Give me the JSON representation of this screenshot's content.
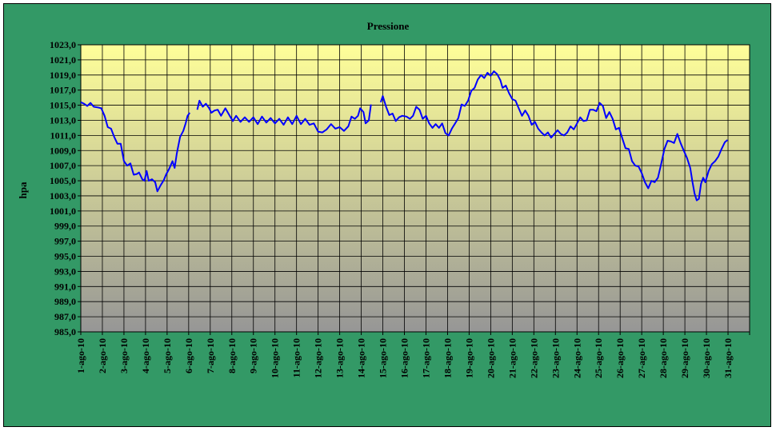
{
  "chart_data": {
    "type": "line",
    "title": "Pressione",
    "xlabel": "",
    "ylabel": "hpa",
    "ylim": [
      985.0,
      1023.0
    ],
    "ytick_step": 2.0,
    "grid": true,
    "legend": "none",
    "categories": [
      "1-ago-10",
      "2-ago-10",
      "3-ago-10",
      "4-ago-10",
      "5-ago-10",
      "6-ago-10",
      "7-ago-10",
      "8-ago-10",
      "9-ago-10",
      "10-ago-10",
      "11-ago-10",
      "12-ago-10",
      "13-ago-10",
      "14-ago-10",
      "15-ago-10",
      "16-ago-10",
      "17-ago-10",
      "18-ago-10",
      "19-ago-10",
      "20-ago-10",
      "21-ago-10",
      "22-ago-10",
      "23-ago-10",
      "24-ago-10",
      "25-ago-10",
      "26-ago-10",
      "27-ago-10",
      "28-ago-10",
      "29-ago-10",
      "30-ago-10",
      "31-ago-10"
    ],
    "colors": {
      "line": "#0000ff",
      "frame": "#339966",
      "plot_top": "#ffff99",
      "plot_bottom": "#969696",
      "grid": "#000000"
    },
    "series": [
      {
        "points": [
          [
            1.0,
            1015.4
          ],
          [
            1.15,
            1015.2
          ],
          [
            1.3,
            1014.9
          ],
          [
            1.45,
            1015.3
          ],
          [
            1.6,
            1014.8
          ],
          [
            1.8,
            1014.7
          ],
          [
            1.95,
            1014.6
          ],
          [
            2.1,
            1013.6
          ],
          [
            2.25,
            1012.1
          ],
          [
            2.4,
            1011.9
          ],
          [
            2.55,
            1010.8
          ],
          [
            2.7,
            1009.9
          ],
          [
            2.85,
            1009.9
          ],
          [
            3.0,
            1007.6
          ],
          [
            3.15,
            1007.0
          ],
          [
            3.3,
            1007.3
          ],
          [
            3.45,
            1005.8
          ],
          [
            3.6,
            1005.9
          ],
          [
            3.7,
            1006.1
          ],
          [
            3.85,
            1005.2
          ],
          [
            3.95,
            1005.0
          ],
          [
            4.05,
            1006.3
          ],
          [
            4.15,
            1005.0
          ],
          [
            4.3,
            1005.2
          ],
          [
            4.45,
            1004.8
          ],
          [
            4.55,
            1003.6
          ],
          [
            4.7,
            1004.4
          ],
          [
            4.85,
            1005.1
          ],
          [
            4.95,
            1005.8
          ],
          [
            5.1,
            1006.6
          ],
          [
            5.25,
            1007.6
          ],
          [
            5.35,
            1006.7
          ],
          [
            5.45,
            1008.6
          ],
          [
            5.6,
            1010.8
          ],
          [
            5.75,
            1011.6
          ],
          [
            5.85,
            1012.5
          ],
          [
            5.95,
            1013.6
          ],
          [
            6.05,
            1014.0
          ],
          [
            6.4,
            1014.4
          ],
          [
            6.5,
            1015.6
          ],
          [
            6.65,
            1014.8
          ],
          [
            6.8,
            1015.2
          ],
          [
            6.95,
            1014.6
          ],
          [
            7.05,
            1014.0
          ],
          [
            7.2,
            1014.3
          ],
          [
            7.35,
            1014.4
          ],
          [
            7.5,
            1013.6
          ],
          [
            7.7,
            1014.6
          ],
          [
            7.9,
            1013.6
          ],
          [
            8.05,
            1012.9
          ],
          [
            8.2,
            1013.6
          ],
          [
            8.4,
            1012.8
          ],
          [
            8.6,
            1013.4
          ],
          [
            8.8,
            1012.8
          ],
          [
            9.0,
            1013.4
          ],
          [
            9.2,
            1012.5
          ],
          [
            9.4,
            1013.5
          ],
          [
            9.6,
            1012.7
          ],
          [
            9.8,
            1013.3
          ],
          [
            10.0,
            1012.6
          ],
          [
            10.2,
            1013.2
          ],
          [
            10.4,
            1012.4
          ],
          [
            10.6,
            1013.4
          ],
          [
            10.8,
            1012.5
          ],
          [
            11.0,
            1013.6
          ],
          [
            11.2,
            1012.5
          ],
          [
            11.4,
            1013.2
          ],
          [
            11.6,
            1012.4
          ],
          [
            11.8,
            1012.6
          ],
          [
            12.0,
            1011.5
          ],
          [
            12.2,
            1011.4
          ],
          [
            12.4,
            1011.8
          ],
          [
            12.6,
            1012.5
          ],
          [
            12.8,
            1011.9
          ],
          [
            13.0,
            1012.1
          ],
          [
            13.2,
            1011.6
          ],
          [
            13.4,
            1012.2
          ],
          [
            13.55,
            1013.5
          ],
          [
            13.7,
            1013.2
          ],
          [
            13.85,
            1013.6
          ],
          [
            13.95,
            1014.6
          ],
          [
            14.1,
            1014.1
          ],
          [
            14.2,
            1012.6
          ],
          [
            14.35,
            1013.0
          ],
          [
            14.45,
            1015.1
          ],
          [
            14.9,
            1015.4
          ],
          [
            15.0,
            1016.2
          ],
          [
            15.15,
            1014.8
          ],
          [
            15.3,
            1013.7
          ],
          [
            15.45,
            1013.9
          ],
          [
            15.6,
            1012.9
          ],
          [
            15.75,
            1013.4
          ],
          [
            15.9,
            1013.6
          ],
          [
            16.1,
            1013.5
          ],
          [
            16.25,
            1013.2
          ],
          [
            16.4,
            1013.6
          ],
          [
            16.55,
            1014.8
          ],
          [
            16.7,
            1014.4
          ],
          [
            16.85,
            1013.2
          ],
          [
            17.0,
            1013.6
          ],
          [
            17.15,
            1012.6
          ],
          [
            17.3,
            1012.0
          ],
          [
            17.45,
            1012.5
          ],
          [
            17.6,
            1012.0
          ],
          [
            17.75,
            1012.6
          ],
          [
            17.9,
            1011.3
          ],
          [
            18.05,
            1011.0
          ],
          [
            18.2,
            1011.9
          ],
          [
            18.35,
            1012.6
          ],
          [
            18.5,
            1013.3
          ],
          [
            18.65,
            1015.1
          ],
          [
            18.8,
            1014.9
          ],
          [
            18.95,
            1015.6
          ],
          [
            19.1,
            1016.9
          ],
          [
            19.25,
            1017.3
          ],
          [
            19.4,
            1018.4
          ],
          [
            19.55,
            1019.0
          ],
          [
            19.7,
            1018.6
          ],
          [
            19.85,
            1019.3
          ],
          [
            20.0,
            1018.9
          ],
          [
            20.15,
            1019.5
          ],
          [
            20.3,
            1019.1
          ],
          [
            20.45,
            1018.3
          ],
          [
            20.55,
            1017.3
          ],
          [
            20.7,
            1017.6
          ],
          [
            20.85,
            1016.6
          ],
          [
            21.0,
            1015.8
          ],
          [
            21.15,
            1015.6
          ],
          [
            21.3,
            1014.6
          ],
          [
            21.45,
            1013.6
          ],
          [
            21.6,
            1014.3
          ],
          [
            21.75,
            1013.6
          ],
          [
            21.9,
            1012.4
          ],
          [
            22.05,
            1012.8
          ],
          [
            22.2,
            1011.9
          ],
          [
            22.35,
            1011.4
          ],
          [
            22.5,
            1011.0
          ],
          [
            22.65,
            1011.4
          ],
          [
            22.8,
            1010.7
          ],
          [
            22.95,
            1011.2
          ],
          [
            23.1,
            1011.7
          ],
          [
            23.25,
            1011.2
          ],
          [
            23.4,
            1011.0
          ],
          [
            23.55,
            1011.4
          ],
          [
            23.7,
            1012.2
          ],
          [
            23.85,
            1011.8
          ],
          [
            24.0,
            1012.6
          ],
          [
            24.15,
            1013.4
          ],
          [
            24.3,
            1012.9
          ],
          [
            24.45,
            1013.0
          ],
          [
            24.6,
            1014.4
          ],
          [
            24.75,
            1014.4
          ],
          [
            24.9,
            1014.2
          ],
          [
            25.05,
            1015.3
          ],
          [
            25.2,
            1014.9
          ],
          [
            25.35,
            1013.3
          ],
          [
            25.5,
            1014.1
          ],
          [
            25.65,
            1013.2
          ],
          [
            25.8,
            1011.8
          ],
          [
            25.95,
            1012.0
          ],
          [
            26.1,
            1010.6
          ],
          [
            26.25,
            1009.3
          ],
          [
            26.4,
            1009.2
          ],
          [
            26.55,
            1007.6
          ],
          [
            26.7,
            1007.0
          ],
          [
            26.85,
            1006.9
          ],
          [
            27.0,
            1006.0
          ],
          [
            27.15,
            1004.8
          ],
          [
            27.3,
            1004.0
          ],
          [
            27.45,
            1005.0
          ],
          [
            27.6,
            1004.8
          ],
          [
            27.75,
            1005.4
          ],
          [
            27.9,
            1007.2
          ],
          [
            28.05,
            1009.2
          ],
          [
            28.2,
            1010.3
          ],
          [
            28.35,
            1010.2
          ],
          [
            28.5,
            1010.0
          ],
          [
            28.65,
            1011.2
          ],
          [
            28.8,
            1010.0
          ],
          [
            28.95,
            1009.0
          ],
          [
            29.1,
            1008.0
          ],
          [
            29.25,
            1006.7
          ],
          [
            29.35,
            1004.9
          ],
          [
            29.45,
            1003.3
          ],
          [
            29.55,
            1002.4
          ],
          [
            29.65,
            1002.6
          ],
          [
            29.75,
            1004.6
          ],
          [
            29.85,
            1005.4
          ],
          [
            29.95,
            1004.8
          ],
          [
            30.1,
            1006.3
          ],
          [
            30.25,
            1007.2
          ],
          [
            30.4,
            1007.6
          ],
          [
            30.55,
            1008.2
          ],
          [
            30.7,
            1009.2
          ],
          [
            30.85,
            1010.1
          ],
          [
            30.98,
            1010.4
          ]
        ],
        "gaps_after_x": [
          6.05,
          14.45
        ]
      }
    ]
  }
}
